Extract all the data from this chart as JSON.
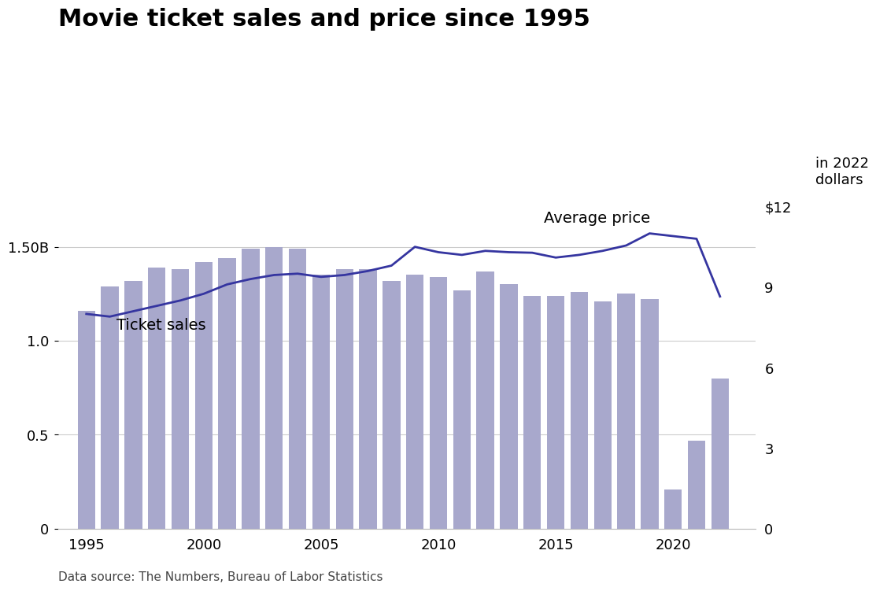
{
  "title": "Movie ticket sales and price since 1995",
  "source": "Data source: The Numbers, Bureau of Labor Statistics",
  "years": [
    1995,
    1996,
    1997,
    1998,
    1999,
    2000,
    2001,
    2002,
    2003,
    2004,
    2005,
    2006,
    2007,
    2008,
    2009,
    2010,
    2011,
    2012,
    2013,
    2014,
    2015,
    2016,
    2017,
    2018,
    2019,
    2020,
    2021,
    2022
  ],
  "ticket_sales_B": [
    1.16,
    1.29,
    1.32,
    1.39,
    1.38,
    1.42,
    1.44,
    1.49,
    1.5,
    1.49,
    1.35,
    1.38,
    1.38,
    1.32,
    1.35,
    1.34,
    1.27,
    1.37,
    1.3,
    1.24,
    1.24,
    1.26,
    1.21,
    1.25,
    1.22,
    0.21,
    0.47,
    0.8
  ],
  "avg_price_2022": [
    8.0,
    7.9,
    8.1,
    8.3,
    8.5,
    8.75,
    9.1,
    9.3,
    9.45,
    9.5,
    9.38,
    9.45,
    9.6,
    9.8,
    10.5,
    10.3,
    10.2,
    10.35,
    10.3,
    10.28,
    10.1,
    10.2,
    10.35,
    10.55,
    11.0,
    10.9,
    10.8,
    8.65
  ],
  "bar_color": "#a8a8cc",
  "line_color": "#3535a0",
  "background_color": "#ffffff",
  "title_fontsize": 22,
  "label_fontsize": 14,
  "tick_fontsize": 13,
  "source_fontsize": 11,
  "left_ylim": [
    0,
    2.0
  ],
  "right_ylim": [
    0,
    14.0
  ],
  "left_yticks": [
    0,
    0.5,
    1.0,
    1.5
  ],
  "left_yticklabels": [
    "0",
    "0.5",
    "1.0",
    "1.50B"
  ],
  "right_yticks": [
    0,
    3,
    6,
    9,
    12
  ],
  "right_yticklabels": [
    "0",
    "3",
    "6",
    "9",
    "$12"
  ],
  "avg_price_label": "Average price",
  "ticket_sales_label": "Ticket sales",
  "right_extra_label": "in 2022\ndollars"
}
